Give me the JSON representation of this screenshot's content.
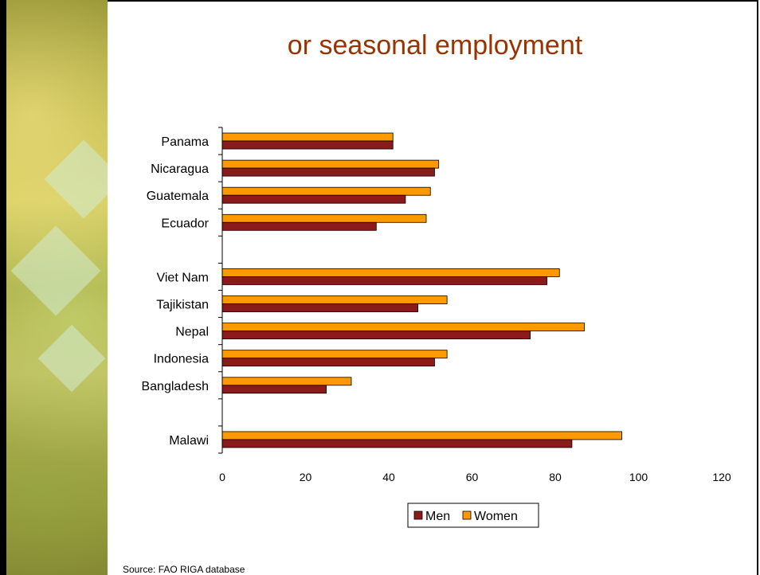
{
  "slide": {
    "title": "or seasonal employment",
    "source": "Source: FAO RIGA database"
  },
  "colors": {
    "men": "#8b1a1a",
    "women": "#ff9900",
    "title": "#993300"
  },
  "chart_data": {
    "type": "bar",
    "orientation": "horizontal",
    "categories": [
      "Panama",
      "Nicaragua",
      "Guatemala",
      "Ecuador",
      "",
      "Viet Nam",
      "Tajikistan",
      "Nepal",
      "Indonesia",
      "Bangladesh",
      "",
      "Malawi"
    ],
    "series": [
      {
        "name": "Men",
        "values": [
          41,
          51,
          44,
          37,
          null,
          78,
          47,
          74,
          51,
          25,
          null,
          84
        ]
      },
      {
        "name": "Women",
        "values": [
          41,
          52,
          50,
          49,
          null,
          81,
          54,
          87,
          54,
          31,
          null,
          96
        ]
      }
    ],
    "xlim": [
      0,
      120
    ],
    "xticks": [
      "0",
      "20",
      "40",
      "60",
      "80",
      "100",
      "120"
    ],
    "grid": false,
    "legend_position": "bottom"
  }
}
